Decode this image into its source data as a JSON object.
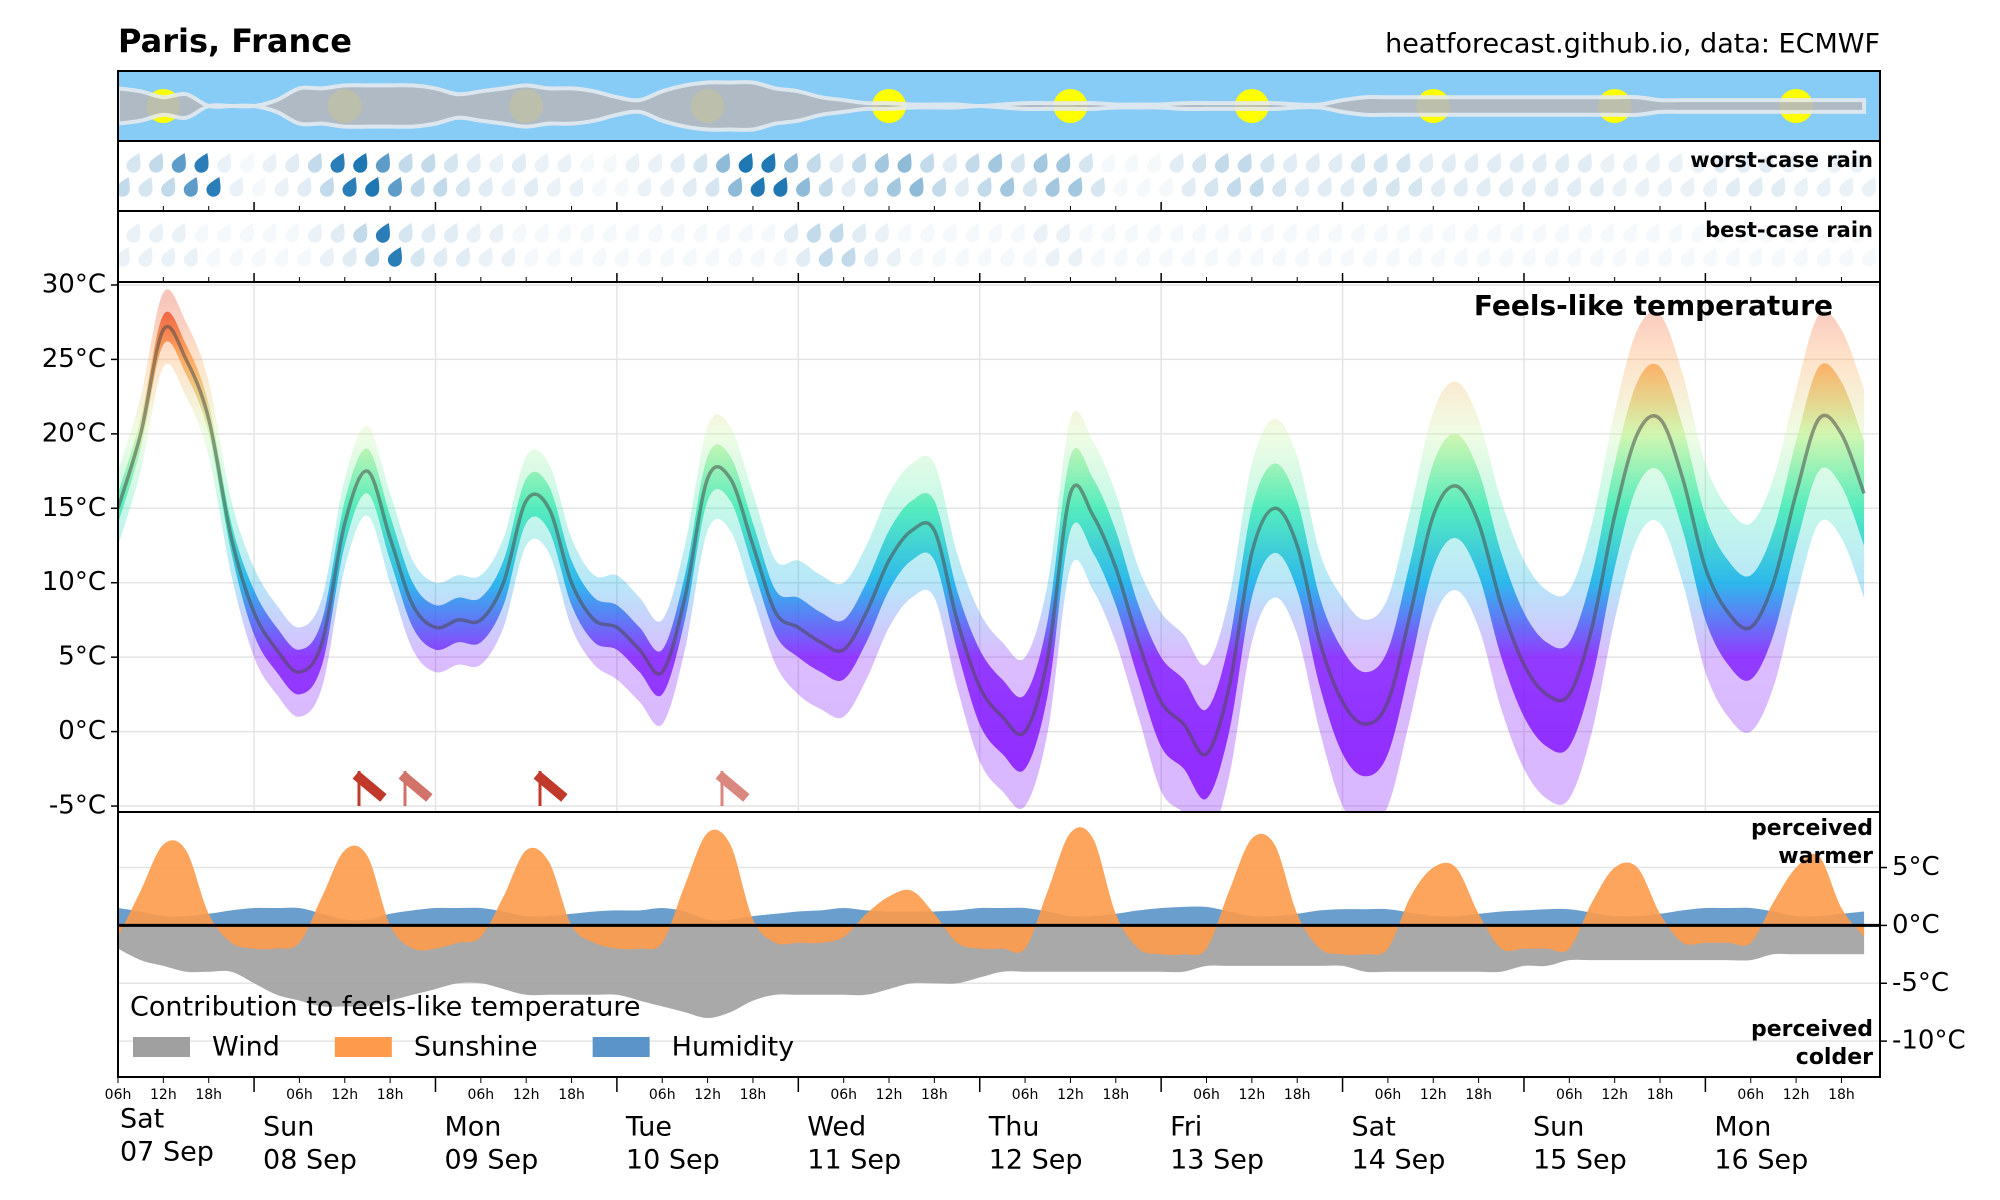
{
  "title": "Paris, France",
  "source": "heatforecast.github.io, data: ECMWF",
  "x": [
    "07 Sep 06h",
    "07 Sep 09h",
    "07 Sep 12h",
    "07 Sep 15h",
    "07 Sep 18h",
    "07 Sep 21h",
    "08 Sep 00h",
    "08 Sep 03h",
    "08 Sep 06h",
    "08 Sep 09h",
    "08 Sep 12h",
    "08 Sep 15h",
    "08 Sep 18h",
    "08 Sep 21h",
    "09 Sep 00h",
    "09 Sep 03h",
    "09 Sep 06h",
    "09 Sep 09h",
    "09 Sep 12h",
    "09 Sep 15h",
    "09 Sep 18h",
    "09 Sep 21h",
    "10 Sep 00h",
    "10 Sep 03h",
    "10 Sep 06h",
    "10 Sep 09h",
    "10 Sep 12h",
    "10 Sep 15h",
    "10 Sep 18h",
    "10 Sep 21h",
    "11 Sep 00h",
    "11 Sep 03h",
    "11 Sep 06h",
    "11 Sep 09h",
    "11 Sep 12h",
    "11 Sep 15h",
    "11 Sep 18h",
    "11 Sep 21h",
    "12 Sep 00h",
    "12 Sep 03h",
    "12 Sep 06h",
    "12 Sep 09h",
    "12 Sep 12h",
    "12 Sep 15h",
    "12 Sep 18h",
    "12 Sep 21h",
    "13 Sep 00h",
    "13 Sep 03h",
    "13 Sep 06h",
    "13 Sep 09h",
    "13 Sep 12h",
    "13 Sep 15h",
    "13 Sep 18h",
    "13 Sep 21h",
    "14 Sep 00h",
    "14 Sep 03h",
    "14 Sep 06h",
    "14 Sep 09h",
    "14 Sep 12h",
    "14 Sep 15h",
    "14 Sep 18h",
    "14 Sep 21h",
    "15 Sep 00h",
    "15 Sep 03h",
    "15 Sep 06h",
    "15 Sep 09h",
    "15 Sep 12h",
    "15 Sep 15h",
    "15 Sep 18h",
    "15 Sep 21h",
    "16 Sep 00h",
    "16 Sep 03h",
    "16 Sep 06h",
    "16 Sep 09h",
    "16 Sep 12h",
    "16 Sep 15h",
    "16 Sep 18h",
    "16 Sep 21h"
  ],
  "days": [
    {
      "name": "Sat",
      "date": "07 Sep"
    },
    {
      "name": "Sun",
      "date": "08 Sep"
    },
    {
      "name": "Mon",
      "date": "09 Sep"
    },
    {
      "name": "Tue",
      "date": "10 Sep"
    },
    {
      "name": "Wed",
      "date": "11 Sep"
    },
    {
      "name": "Thu",
      "date": "12 Sep"
    },
    {
      "name": "Fri",
      "date": "13 Sep"
    },
    {
      "name": "Sat",
      "date": "14 Sep"
    },
    {
      "name": "Sun",
      "date": "15 Sep"
    },
    {
      "name": "Mon",
      "date": "16 Sep"
    }
  ],
  "hours": [
    "06h",
    "12h",
    "18h"
  ],
  "chart_data": [
    {
      "type": "cloud",
      "sky_color": "#87cbf7",
      "cloud_color": "#b4b9bf",
      "sun_color": "#ffff00",
      "values": [
        60,
        50,
        30,
        40,
        0,
        0,
        0,
        20,
        60,
        60,
        70,
        70,
        70,
        70,
        60,
        40,
        50,
        60,
        70,
        60,
        60,
        50,
        30,
        20,
        50,
        70,
        80,
        80,
        80,
        60,
        50,
        30,
        20,
        10,
        10,
        5,
        5,
        5,
        0,
        5,
        10,
        10,
        10,
        10,
        5,
        5,
        5,
        10,
        10,
        10,
        10,
        10,
        5,
        5,
        20,
        30,
        30,
        30,
        30,
        30,
        30,
        30,
        30,
        30,
        30,
        30,
        30,
        30,
        20,
        20,
        20,
        20,
        20,
        20,
        20,
        20,
        20,
        20
      ]
    },
    {
      "type": "rain",
      "label": "worst-case rain",
      "color": "#1f77b4",
      "values": [
        0.5,
        0.3,
        0.5,
        1.5,
        2,
        0.1,
        0,
        0.1,
        0.2,
        0.5,
        2,
        2.5,
        1.5,
        0.5,
        0.5,
        0.3,
        0.2,
        0.1,
        0.2,
        0.1,
        0.1,
        0,
        0,
        0.1,
        0.1,
        0.2,
        0.3,
        1,
        2.5,
        2.5,
        1,
        0.5,
        0.2,
        0.5,
        0.8,
        1,
        0.5,
        0.2,
        0.5,
        0.8,
        0.3,
        0.8,
        0.8,
        0.3,
        0,
        0,
        0,
        0.2,
        0.3,
        0.5,
        0.5,
        0.3,
        0.2,
        0.2,
        0.2,
        0.3,
        0.3,
        0.3,
        0.2,
        0.2,
        0.2,
        0.2,
        0.2,
        0.2,
        0.2,
        0.2,
        0.1,
        0.1,
        0.1,
        0.1,
        0.1,
        0.2,
        0.2,
        0.2,
        0.1,
        0.1,
        0.1,
        0.1
      ]
    },
    {
      "type": "rain",
      "label": "best-case rain",
      "color": "#1f77b4",
      "values": [
        0.1,
        0.1,
        0.1,
        0.1,
        0,
        0,
        0,
        0,
        0,
        0.1,
        0.2,
        0.5,
        2,
        0.3,
        0.2,
        0.2,
        0.1,
        0.1,
        0,
        0,
        0,
        0,
        0,
        0,
        0,
        0,
        0,
        0,
        0,
        0,
        0.2,
        0.5,
        0.5,
        0.2,
        0.1,
        0,
        0,
        0,
        0,
        0,
        0,
        0.1,
        0.1,
        0,
        0,
        0,
        0,
        0,
        0,
        0,
        0,
        0,
        0,
        0,
        0,
        0,
        0,
        0,
        0,
        0,
        0,
        0,
        0,
        0,
        0,
        0,
        0,
        0,
        0,
        0,
        0,
        0,
        0,
        0,
        0,
        0,
        0,
        0
      ]
    },
    {
      "type": "band",
      "title": "Feels-like temperature",
      "ylim": [
        -5.4,
        30.2
      ],
      "yticks": [
        {
          "value": -5,
          "label": "-5°C"
        },
        {
          "value": 0,
          "label": "0°C"
        },
        {
          "value": 5,
          "label": "5°C"
        },
        {
          "value": 10,
          "label": "10°C"
        },
        {
          "value": 15,
          "label": "15°C"
        },
        {
          "value": 20,
          "label": "20°C"
        },
        {
          "value": 25,
          "label": "25°C"
        },
        {
          "value": 30,
          "label": "30°C"
        }
      ],
      "grid": true,
      "colormap": [
        {
          "value": -2,
          "color": "#7a00ff"
        },
        {
          "value": 5,
          "color": "#7a10ff"
        },
        {
          "value": 10,
          "color": "#00a8e8"
        },
        {
          "value": 15,
          "color": "#30e8b0"
        },
        {
          "value": 20,
          "color": "#c8f4a0"
        },
        {
          "value": 25,
          "color": "#ff9a40"
        },
        {
          "value": 29,
          "color": "#e83010"
        }
      ],
      "median_color": "#4a4a4a",
      "bands": [
        {
          "opacity": 0.28,
          "low": [
            12.5,
            17.5,
            24.5,
            22.5,
            18.5,
            10.5,
            5,
            2.5,
            1,
            3,
            11,
            14.5,
            10,
            5.5,
            4,
            4.5,
            4.5,
            7,
            12.5,
            12,
            7,
            4.5,
            3.5,
            2,
            0.5,
            5.5,
            13.5,
            13.5,
            9,
            4.5,
            2.5,
            1.5,
            1,
            3.5,
            7,
            9,
            9,
            3,
            -2,
            -4,
            -5,
            0,
            11,
            9.5,
            6,
            1,
            -4,
            -5.5,
            -7.5,
            -3,
            6,
            9,
            6.5,
            0,
            -5,
            -6.5,
            -5,
            1,
            7.5,
            9.5,
            7,
            1.5,
            -2.5,
            -4.5,
            -4.5,
            0,
            7.5,
            13,
            14,
            10,
            4,
            1,
            0,
            3,
            9,
            14,
            13,
            9
          ],
          "high": [
            17.5,
            22.5,
            29.5,
            27.5,
            23.5,
            15.5,
            11,
            8.5,
            7,
            9,
            17,
            20.5,
            16,
            11.5,
            10,
            10.5,
            10.5,
            13,
            18.5,
            18,
            13,
            10.5,
            10.5,
            9,
            7.5,
            12.5,
            20.5,
            20.5,
            16,
            11.5,
            11.5,
            10.5,
            10,
            12.5,
            16,
            18,
            18,
            12,
            8,
            6,
            5,
            10,
            21,
            19.5,
            16,
            11,
            8,
            6.5,
            4.5,
            9,
            18,
            21,
            18.5,
            12,
            9,
            7.5,
            9,
            15,
            21.5,
            23.5,
            21,
            15.5,
            11.5,
            9.5,
            9.5,
            14,
            21.5,
            27,
            28,
            24,
            18,
            15,
            14,
            17,
            23,
            28,
            27,
            23
          ]
        },
        {
          "opacity": 0.75,
          "low": [
            14,
            19,
            26,
            24,
            20,
            12,
            6.5,
            4,
            2.5,
            4.5,
            12.5,
            16,
            11.5,
            7,
            5.5,
            6,
            6,
            8.5,
            14,
            13.5,
            8.5,
            6,
            5.5,
            4,
            2.5,
            7.5,
            15.5,
            15.5,
            11,
            6.5,
            5,
            4,
            3.5,
            6,
            9.5,
            11.5,
            11.5,
            5.5,
            0.5,
            -1.5,
            -2.5,
            2.5,
            13.5,
            12,
            8.5,
            3.5,
            -1,
            -2.5,
            -4.5,
            0,
            9,
            12,
            9.5,
            3,
            -1.5,
            -3,
            -1.5,
            4.5,
            11,
            13,
            10.5,
            5,
            1,
            -1,
            -1,
            3.5,
            11,
            16.5,
            17.5,
            13.5,
            7.5,
            4.5,
            3.5,
            6.5,
            12.5,
            17.5,
            16.5,
            12.5
          ],
          "high": [
            16,
            21,
            28,
            26,
            22,
            14,
            9.5,
            7,
            5.5,
            7.5,
            15.5,
            19,
            14.5,
            10,
            8.5,
            9,
            9,
            11.5,
            17,
            16.5,
            11.5,
            9,
            8.5,
            7,
            5.5,
            10.5,
            18.5,
            18.5,
            14,
            9.5,
            9,
            8,
            7.5,
            10,
            13.5,
            15.5,
            15.5,
            9.5,
            5.5,
            3.5,
            2.5,
            7.5,
            18.5,
            17,
            13.5,
            8.5,
            5,
            3.5,
            1.5,
            6,
            15,
            18,
            15.5,
            9,
            5.5,
            4,
            5.5,
            11.5,
            18,
            20,
            17.5,
            12,
            8,
            6,
            6,
            10.5,
            18,
            23.5,
            24.5,
            20.5,
            14.5,
            11.5,
            10.5,
            13.5,
            19.5,
            24.5,
            23.5,
            19.5
          ]
        }
      ],
      "median": [
        15,
        20,
        27,
        25,
        21,
        13,
        8,
        5.5,
        4,
        6,
        14,
        17.5,
        13,
        8.5,
        7,
        7.5,
        7.5,
        10,
        15.5,
        15,
        10,
        7.5,
        7,
        5.5,
        4,
        9,
        17,
        17,
        12.5,
        8,
        7,
        6,
        5.5,
        8,
        11.5,
        13.5,
        13.5,
        7.5,
        3,
        1,
        0,
        5,
        16,
        14.5,
        11,
        6,
        2,
        0.5,
        -1.5,
        3,
        12,
        15,
        12.5,
        6,
        2,
        0.5,
        2,
        8,
        14.5,
        16.5,
        14,
        8.5,
        4.5,
        2.5,
        2.5,
        7,
        14.5,
        20,
        21,
        17,
        11,
        8,
        7,
        10,
        16,
        21,
        20,
        16
      ]
    },
    {
      "type": "area",
      "legend_title": "Contribution to feels-like temperature",
      "legend": "lower left",
      "ylim": [
        -13.1,
        9.8
      ],
      "yticks": [
        {
          "value": 5,
          "label": "5°C"
        },
        {
          "value": 0,
          "label": "0°C"
        },
        {
          "value": -5,
          "label": "-5°C"
        },
        {
          "value": -10,
          "label": "-10°C"
        }
      ],
      "upper_label": [
        "perceived",
        "warmer"
      ],
      "lower_label": [
        "perceived",
        "colder"
      ],
      "series": [
        {
          "name": "Wind",
          "color": "#a0a0a0",
          "values": [
            -2,
            -3,
            -3.5,
            -4,
            -4,
            -4,
            -5,
            -6,
            -6.5,
            -7,
            -7,
            -7,
            -6.5,
            -6,
            -5.5,
            -5,
            -5,
            -5.5,
            -6,
            -6,
            -6,
            -6,
            -6,
            -6.5,
            -7,
            -7.5,
            -8,
            -7.5,
            -6.5,
            -6,
            -6,
            -6,
            -6,
            -6,
            -5.5,
            -5,
            -5,
            -5,
            -4.5,
            -4,
            -4,
            -4,
            -4,
            -4,
            -4,
            -4,
            -4,
            -4,
            -3.5,
            -3.5,
            -3.5,
            -3.5,
            -3.5,
            -3.5,
            -3.5,
            -4,
            -4,
            -4,
            -4,
            -4,
            -4,
            -4,
            -3.5,
            -3.5,
            -3,
            -3,
            -3,
            -3,
            -3,
            -3,
            -3,
            -3,
            -3,
            -2.5,
            -2.5,
            -2.5,
            -2.5,
            -2.5
          ]
        },
        {
          "name": "Sunshine",
          "color": "#fd9a4b",
          "values": [
            -1,
            3,
            7,
            6.5,
            1,
            -1.5,
            -2,
            -2,
            -1.5,
            2.5,
            6.5,
            6,
            0,
            -2,
            -2,
            -1.5,
            -1,
            2.5,
            6.5,
            5.5,
            0,
            -1.5,
            -2,
            -2,
            -1.5,
            3.5,
            8,
            7,
            0.5,
            -1.5,
            -1.5,
            -1.5,
            -1,
            1,
            2.5,
            3,
            1,
            -1.5,
            -2,
            -2,
            -2,
            3,
            8,
            7.5,
            1,
            -2,
            -2.5,
            -2.5,
            -2,
            3,
            7.5,
            7,
            1,
            -2,
            -2.5,
            -2.5,
            -2,
            2.5,
            5,
            5,
            1,
            -2,
            -2,
            -2,
            -2,
            2,
            5,
            5,
            1,
            -1.5,
            -1.5,
            -1.5,
            -1.5,
            2,
            5,
            6,
            1.5,
            -1
          ]
        },
        {
          "name": "Humidity",
          "color": "#5a94c8",
          "values": [
            1.5,
            1.2,
            0.8,
            0.8,
            1,
            1.3,
            1.5,
            1.5,
            1.5,
            1,
            0.5,
            0.5,
            1,
            1.3,
            1.5,
            1.5,
            1.5,
            1.2,
            0.8,
            0.8,
            1,
            1.2,
            1.3,
            1.3,
            1.5,
            1.2,
            0.5,
            0.5,
            0.8,
            1,
            1.2,
            1.3,
            1.5,
            1.3,
            1.2,
            1.2,
            1.2,
            1.3,
            1.5,
            1.5,
            1.5,
            1.2,
            0.8,
            0.8,
            1,
            1.3,
            1.5,
            1.6,
            1.6,
            1.2,
            0.8,
            0.8,
            1,
            1.3,
            1.4,
            1.4,
            1.4,
            1.1,
            0.8,
            0.8,
            1,
            1.2,
            1.3,
            1.4,
            1.4,
            1.1,
            0.8,
            0.8,
            1,
            1.3,
            1.5,
            1.5,
            1.5,
            1.2,
            0.8,
            0.8,
            1,
            1.2
          ]
        }
      ]
    }
  ]
}
